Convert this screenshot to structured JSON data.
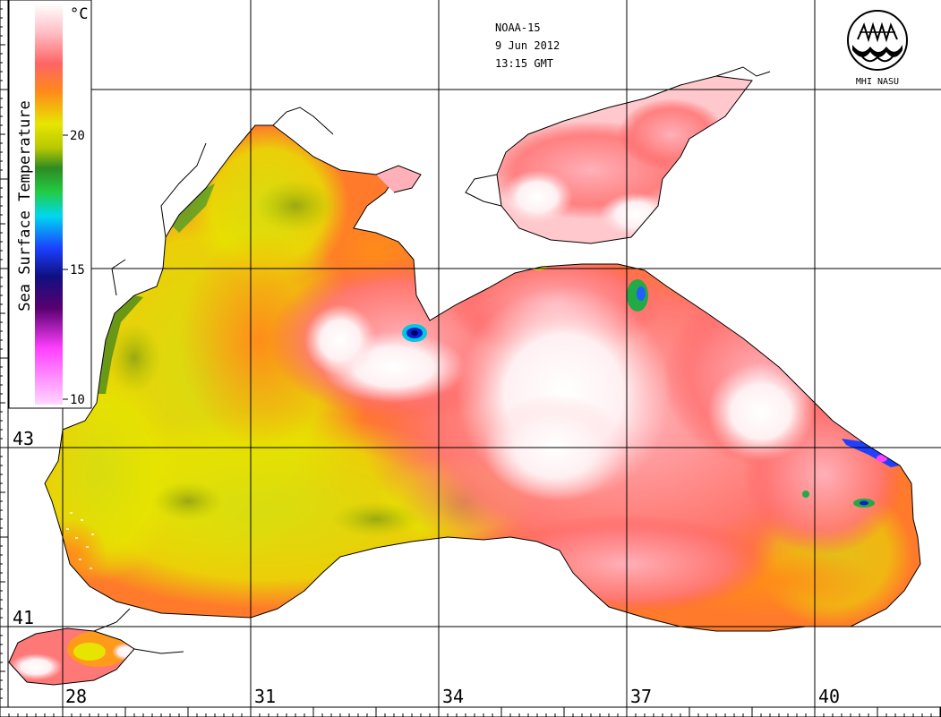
{
  "header": {
    "satellite": "NOAA-15",
    "date": "9 Jun 2012",
    "time": "13:15 GMT"
  },
  "logo": {
    "text": "MHI NASU",
    "icon": "mhi-nasu-emblem-icon"
  },
  "legend": {
    "title": "Sea Surface Temperature",
    "unit": "°C",
    "ticks": [
      "20",
      "15",
      "10"
    ],
    "tick_values": [
      20,
      15,
      10
    ],
    "range": [
      10,
      25
    ],
    "colors": {
      "hot": "#fff0f3",
      "warm": "#ff6666",
      "orange": "#ff8c1a",
      "yellow": "#e6e600",
      "green": "#2e8b22",
      "cyan": "#00d7f0",
      "blue": "#1020e0",
      "purple": "#5a0070",
      "magenta": "#ff40ff",
      "pale": "#ffc8ff"
    }
  },
  "axes": {
    "longitudes": [
      "28",
      "31",
      "34",
      "37",
      "40"
    ],
    "latitudes": [
      "43",
      "41"
    ]
  },
  "colors": {
    "land": "#ffffff",
    "coast": "#000000",
    "grid": "#000000"
  }
}
